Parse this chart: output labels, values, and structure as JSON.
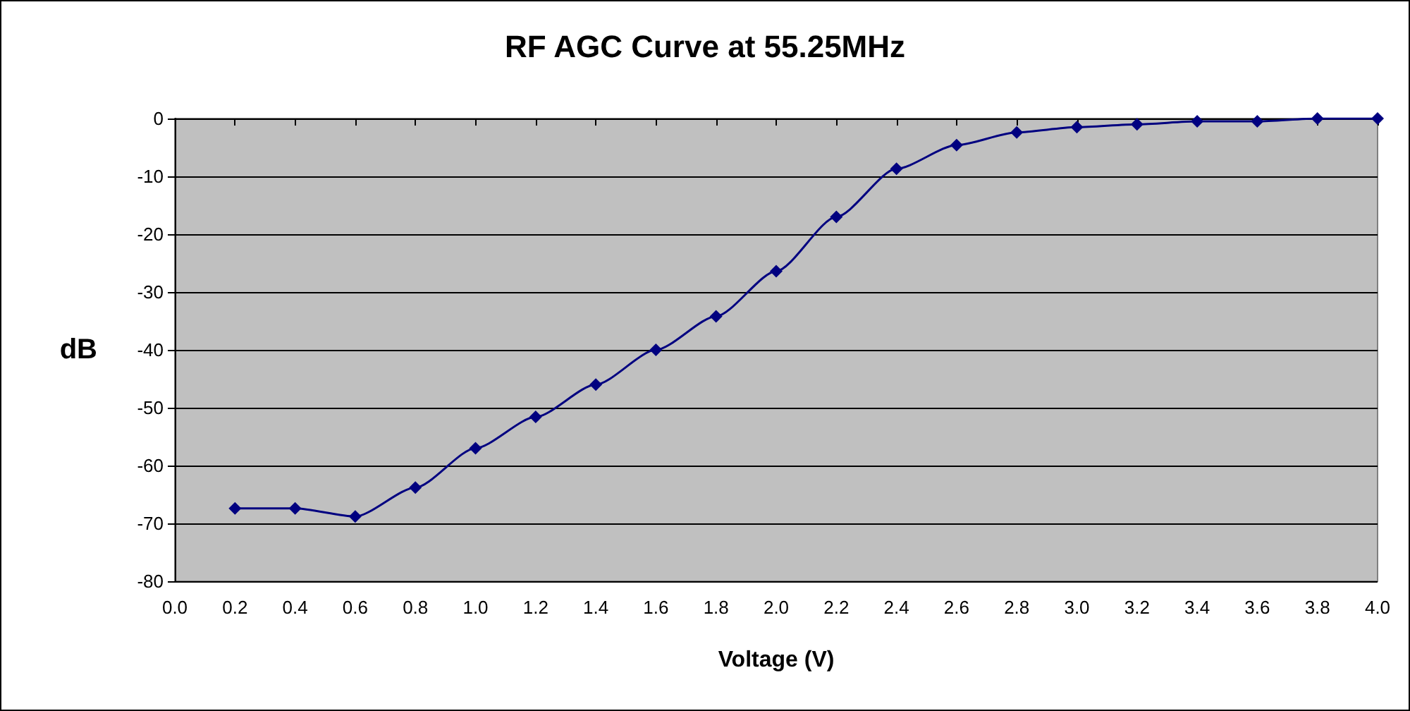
{
  "chart_data": {
    "type": "line",
    "title": "RF AGC Curve at 55.25MHz",
    "xlabel": "Voltage (V)",
    "ylabel": "dB",
    "x": [
      0.2,
      0.4,
      0.6,
      0.8,
      1.0,
      1.2,
      1.4,
      1.6,
      1.8,
      2.0,
      2.2,
      2.4,
      2.6,
      2.8,
      3.0,
      3.2,
      3.4,
      3.6,
      3.8,
      4.0
    ],
    "series": [
      {
        "color": "#000080",
        "values": [
          -67.4,
          -67.4,
          -68.8,
          -63.8,
          -57,
          -51.6,
          -46,
          -40,
          -34.2,
          -26.4,
          -17,
          -8.7,
          -4.6,
          -2.4,
          -1.5,
          -1,
          -0.5,
          -0.5,
          0,
          0
        ]
      }
    ],
    "xlim": [
      0,
      4
    ],
    "xticks": [
      {
        "value": 0,
        "label": "0.0"
      },
      {
        "value": 0.2,
        "label": "0.2"
      },
      {
        "value": 0.4,
        "label": "0.4"
      },
      {
        "value": 0.6,
        "label": "0.6"
      },
      {
        "value": 0.8,
        "label": "0.8"
      },
      {
        "value": 1,
        "label": "1.0"
      },
      {
        "value": 1.2,
        "label": "1.2"
      },
      {
        "value": 1.4,
        "label": "1.4"
      },
      {
        "value": 1.6,
        "label": "1.6"
      },
      {
        "value": 1.8,
        "label": "1.8"
      },
      {
        "value": 2,
        "label": "2.0"
      },
      {
        "value": 2.2,
        "label": "2.2"
      },
      {
        "value": 2.4,
        "label": "2.4"
      },
      {
        "value": 2.6,
        "label": "2.6"
      },
      {
        "value": 2.8,
        "label": "2.8"
      },
      {
        "value": 3,
        "label": "3.0"
      },
      {
        "value": 3.2,
        "label": "3.2"
      },
      {
        "value": 3.4,
        "label": "3.4"
      },
      {
        "value": 3.6,
        "label": "3.6"
      },
      {
        "value": 3.8,
        "label": "3.8"
      },
      {
        "value": 4,
        "label": "4.0"
      }
    ],
    "ylim": [
      -80,
      0
    ],
    "yticks": [
      -80,
      -70,
      -60,
      -50,
      -40,
      -30,
      -20,
      -10,
      0
    ],
    "grid": "y",
    "marker": "diamond",
    "line_style": "solid"
  }
}
